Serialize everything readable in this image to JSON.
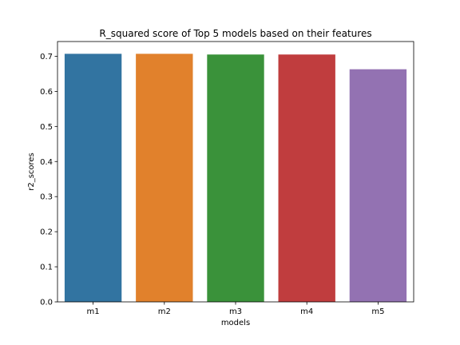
{
  "chart_data": {
    "type": "bar",
    "title": "R_squared score of Top 5 models based on their features",
    "xlabel": "models",
    "ylabel": "r2_scores",
    "categories": [
      "m1",
      "m2",
      "m3",
      "m4",
      "m5"
    ],
    "values": [
      0.707,
      0.707,
      0.705,
      0.705,
      0.663
    ],
    "ylim": [
      0,
      0.742
    ],
    "yticks": [
      "0.0",
      "0.1",
      "0.2",
      "0.3",
      "0.4",
      "0.5",
      "0.6",
      "0.7"
    ],
    "ytick_values": [
      0.0,
      0.1,
      0.2,
      0.3,
      0.4,
      0.5,
      0.6,
      0.7
    ],
    "colors": [
      "#3274a1",
      "#e1812c",
      "#3a923a",
      "#c03d3e",
      "#9372b2"
    ],
    "grid": false,
    "legend": "none"
  }
}
